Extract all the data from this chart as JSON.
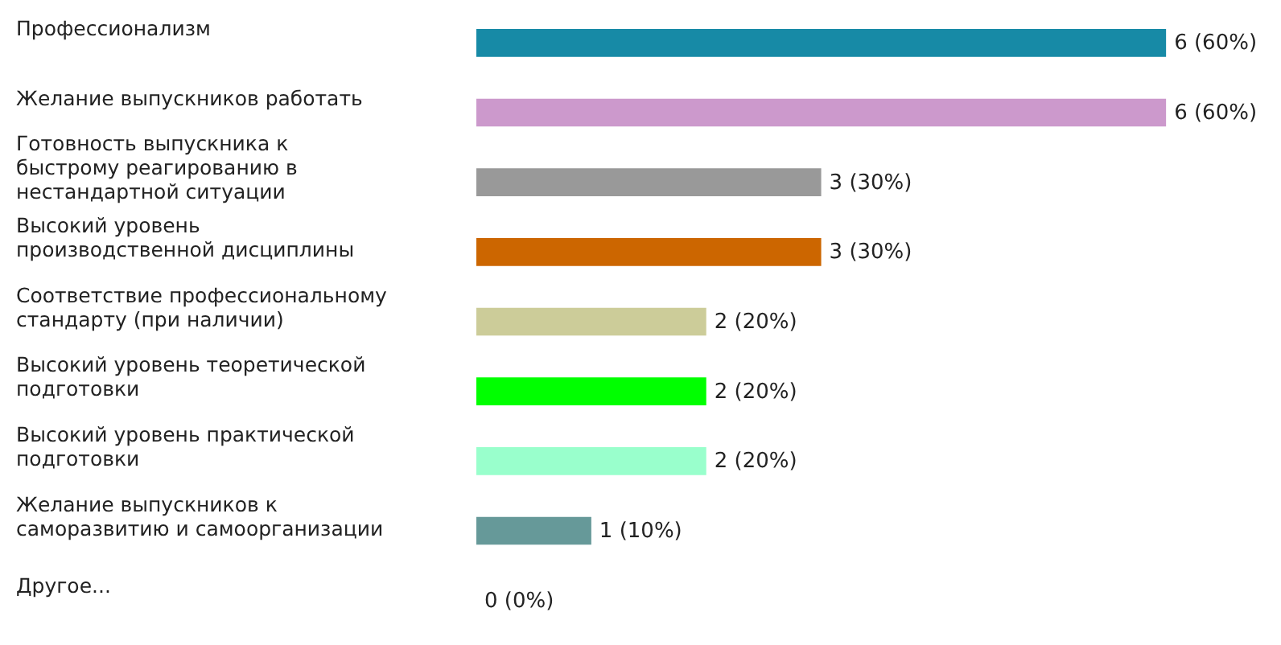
{
  "chart_data": {
    "type": "bar",
    "orientation": "horizontal",
    "categories": [
      "Профессионализм",
      "Желание выпускников работать",
      "Готовность выпускника к быстрому реагированию в нестандартной ситуации",
      "Высокий уровень производственной дисциплины",
      "Соответствие профессиональному стандарту (при наличии)",
      "Высокий уровень теоретической подготовки",
      "Высокий уровень практической подготовки",
      "Желание выпускников к саморазвитию и самоорганизации",
      "Другое..."
    ],
    "values": [
      6,
      6,
      3,
      3,
      2,
      2,
      2,
      1,
      0
    ],
    "colors": [
      "#178aa6",
      "#cc99cc",
      "#999999",
      "#cc6600",
      "#cccc99",
      "#00ff00",
      "#99ffcc",
      "#669999",
      "#cccccc"
    ],
    "value_labels": [
      "6 (60%)",
      "6 (60%)",
      "3 (30%)",
      "3 (30%)",
      "2 (20%)",
      "2 (20%)",
      "2 (20%)",
      "1 (10%)",
      "0 (0%)"
    ]
  }
}
